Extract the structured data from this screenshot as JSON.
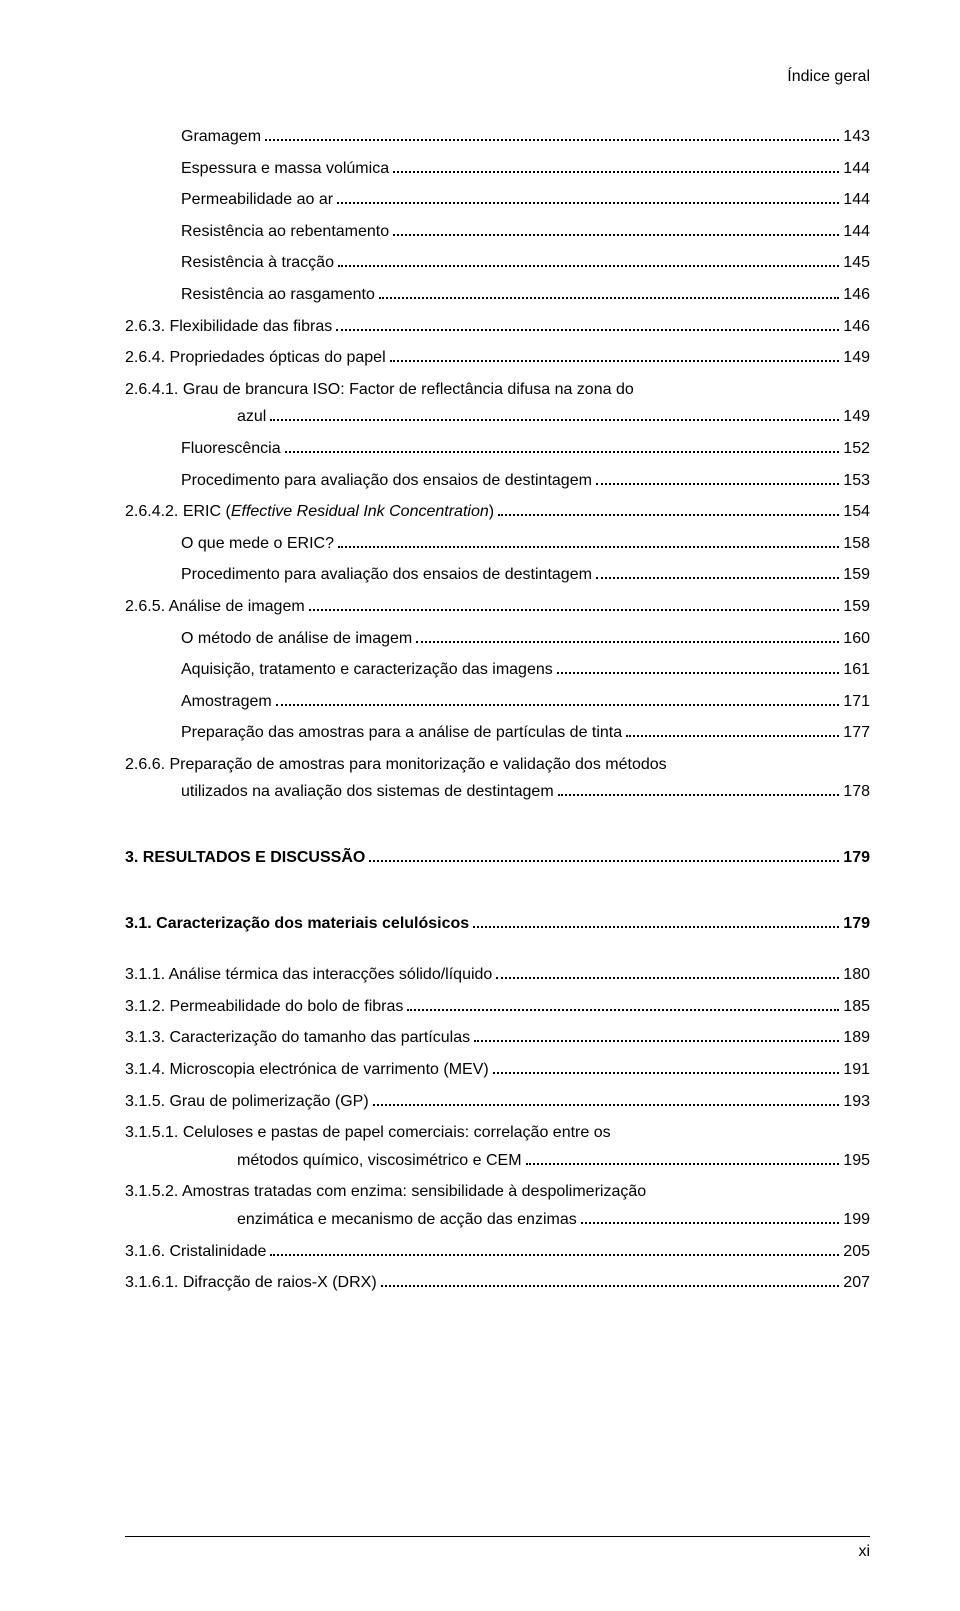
{
  "running_header": "Índice geral",
  "page_number": "xi",
  "entries": [
    {
      "indent": 1,
      "label": "Gramagem",
      "page": "143",
      "bold": false
    },
    {
      "indent": 1,
      "label": "Espessura e massa volúmica",
      "page": "144",
      "bold": false
    },
    {
      "indent": 1,
      "label": "Permeabilidade ao ar",
      "page": "144",
      "bold": false
    },
    {
      "indent": 1,
      "label": "Resistência ao rebentamento",
      "page": "144",
      "bold": false
    },
    {
      "indent": 1,
      "label": "Resistência à tracção",
      "page": "145",
      "bold": false
    },
    {
      "indent": 1,
      "label": "Resistência ao rasgamento",
      "page": "146",
      "bold": false
    },
    {
      "indent": 0,
      "label": "2.6.3. Flexibilidade das fibras",
      "page": "146",
      "bold": false
    },
    {
      "indent": 0,
      "label": "2.6.4. Propriedades ópticas do papel",
      "page": "149",
      "bold": false
    }
  ],
  "entry_2641_pre": "2.6.4.1. Grau de brancura ISO: Factor de reflectância difusa na zona do",
  "entry_2641_last": "azul",
  "entry_2641_page": "149",
  "entries2": [
    {
      "indent": 1,
      "label": "Fluorescência",
      "page": "152",
      "bold": false
    },
    {
      "indent": 1,
      "label": "Procedimento para avaliação dos ensaios de destintagem",
      "page": "153",
      "bold": false
    }
  ],
  "entry_eric_label_a": "2.6.4.2. ERIC (",
  "entry_eric_label_b": "Effective Residual Ink Concentration",
  "entry_eric_label_c": ")",
  "entry_eric_page": "154",
  "entries3": [
    {
      "indent": 1,
      "label": "O que mede o ERIC?",
      "page": "158",
      "bold": false
    },
    {
      "indent": 1,
      "label": "Procedimento para avaliação dos ensaios de destintagem",
      "page": "159",
      "bold": false
    },
    {
      "indent": 0,
      "label": "2.6.5. Análise de imagem",
      "page": "159",
      "bold": false
    },
    {
      "indent": 1,
      "label": "O método de análise de imagem",
      "page": "160",
      "bold": false
    },
    {
      "indent": 1,
      "label": "Aquisição, tratamento e caracterização das imagens",
      "page": "161",
      "bold": false
    },
    {
      "indent": 1,
      "label": "Amostragem",
      "page": "171",
      "bold": false
    },
    {
      "indent": 1,
      "label": "Preparação das amostras para a análise de partículas de tinta",
      "page": "177",
      "bold": false
    }
  ],
  "entry_266_pre": "2.6.6. Preparação de amostras para monitorização e validação dos métodos",
  "entry_266_last": "utilizados na avaliação dos sistemas de destintagem",
  "entry_266_page": "178",
  "section3": {
    "label": "3. RESULTADOS E DISCUSSÃO",
    "page": "179"
  },
  "section31": {
    "label": "3.1. Caracterização dos materiais celulósicos",
    "page": "179"
  },
  "entries4": [
    {
      "indent": 0,
      "label": "3.1.1. Análise térmica das interacções sólido/líquido",
      "page": "180",
      "bold": false
    },
    {
      "indent": 0,
      "label": "3.1.2. Permeabilidade do bolo de fibras",
      "page": "185",
      "bold": false
    },
    {
      "indent": 0,
      "label": "3.1.3. Caracterização do tamanho das partículas",
      "page": "189",
      "bold": false
    },
    {
      "indent": 0,
      "label": "3.1.4. Microscopia electrónica de varrimento (MEV)",
      "page": "191",
      "bold": false
    },
    {
      "indent": 0,
      "label": "3.1.5. Grau de polimerização (GP)",
      "page": "193",
      "bold": false
    }
  ],
  "entry_3151_pre": "3.1.5.1. Celuloses e pastas de papel comerciais: correlação entre os",
  "entry_3151_last": "métodos químico, viscosimétrico e CEM",
  "entry_3151_page": "195",
  "entry_3152_pre": "3.1.5.2. Amostras tratadas com enzima: sensibilidade à despolimerização",
  "entry_3152_last": "enzimática e mecanismo de acção das enzimas",
  "entry_3152_page": "199",
  "entries5": [
    {
      "indent": 0,
      "label": "3.1.6. Cristalinidade",
      "page": "205",
      "bold": false
    },
    {
      "indent": 0,
      "label": "3.1.6.1. Difracção de raios-X (DRX)",
      "page": "207",
      "bold": false
    }
  ]
}
